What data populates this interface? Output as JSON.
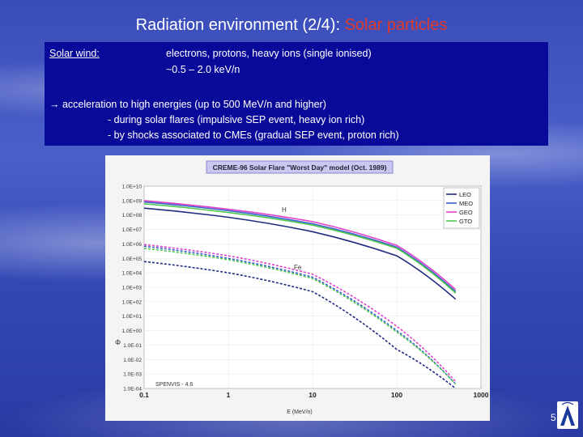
{
  "slide": {
    "title_main": "Radiation environment (2/4): ",
    "title_highlight": "Solar particles",
    "page_number": "5",
    "colors": {
      "background": "#3a4cb8",
      "box": "#0a0a9a",
      "highlight": "#e03a2a"
    }
  },
  "box": {
    "solar_wind_label": "Solar wind:",
    "solar_wind_line1": "electrons, protons, heavy ions (single ionised)",
    "solar_wind_line2": "~0.5 – 2.0 keV/n",
    "acceleration": "→ acceleration to high energies (up to 500 MeV/n and higher)",
    "bullet1": "- during solar flares (impulsive SEP event, heavy ion rich)",
    "bullet2": "- by shocks associated to CMEs (gradual SEP event, proton rich)"
  },
  "chart_data": {
    "type": "line",
    "title": "CREME-96 Solar Flare \"Worst Day\" model (Oct. 1989)",
    "xlabel": "E (MeV/n)",
    "ylabel": "Φ",
    "x_scale": "log",
    "y_scale": "log",
    "xlim": [
      0.1,
      1000
    ],
    "ylim": [
      0.0001,
      10000000000
    ],
    "x_ticks": [
      "0.1",
      "1",
      "10",
      "100",
      "1000"
    ],
    "y_ticks": [
      "1.0E-04",
      "1.0E-03",
      "1.0E-02",
      "1.0E-01",
      "1.0E+00",
      "1.0E+01",
      "1.0E+02",
      "1.0E+03",
      "1.0E+04",
      "1.0E+05",
      "1.0E+06",
      "1.0E+07",
      "1.0E+08",
      "1.0E+09",
      "1.0E+10"
    ],
    "legend": [
      "LEO",
      "MEO",
      "GEO",
      "GTO"
    ],
    "legend_position": "top-right",
    "annotations": {
      "h": "H",
      "fe": "Fe",
      "source": "SPENVIS - 4.6"
    },
    "colors": {
      "LEO": "#1f2a80",
      "MEO": "#3a5fd0",
      "GEO": "#e040c8",
      "GTO": "#50c850"
    },
    "series": [
      {
        "name": "MEO",
        "species": "H",
        "x": [
          0.1,
          1,
          10,
          100,
          500
        ],
        "y": [
          800000000,
          200000000,
          25000000,
          600000,
          500
        ]
      },
      {
        "name": "LEO",
        "species": "H",
        "x": [
          0.1,
          1,
          10,
          100,
          500
        ],
        "y": [
          300000000,
          70000000,
          7000000,
          150000,
          150
        ]
      },
      {
        "name": "GEO",
        "species": "H",
        "x": [
          0.1,
          1,
          10,
          100,
          500
        ],
        "y": [
          1000000000,
          250000000,
          35000000,
          800000,
          700
        ]
      },
      {
        "name": "GTO",
        "species": "H",
        "x": [
          0.1,
          1,
          10,
          100,
          500
        ],
        "y": [
          600000000,
          150000000,
          20000000,
          500000,
          400
        ]
      },
      {
        "name": "MEO",
        "species": "Fe",
        "x": [
          0.1,
          1,
          10,
          100,
          500
        ],
        "y": [
          700000,
          100000,
          5000,
          1,
          0.0002
        ]
      },
      {
        "name": "LEO",
        "species": "Fe",
        "x": [
          0.1,
          1,
          10,
          100,
          500
        ],
        "y": [
          60000,
          10000,
          500,
          0.05,
          0.0001
        ]
      },
      {
        "name": "GEO",
        "species": "Fe",
        "x": [
          0.1,
          1,
          10,
          100,
          500
        ],
        "y": [
          900000,
          150000,
          8000,
          2,
          0.0003
        ]
      },
      {
        "name": "GTO",
        "species": "Fe",
        "x": [
          0.1,
          1,
          10,
          100,
          500
        ],
        "y": [
          500000,
          80000,
          4000,
          0.8,
          0.0002
        ]
      }
    ]
  }
}
